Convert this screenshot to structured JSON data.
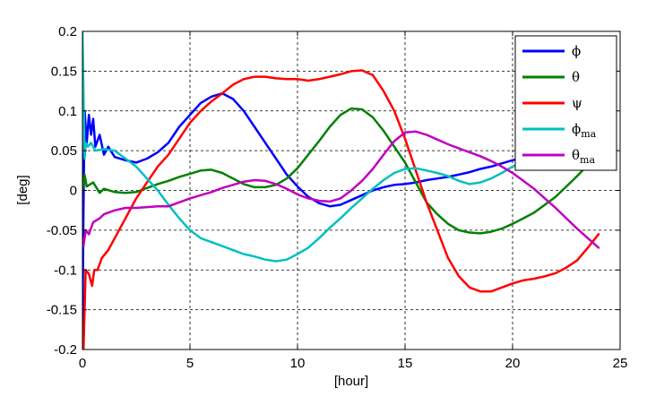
{
  "chart_data": {
    "type": "line",
    "title": "",
    "xlabel": "[hour]",
    "ylabel": "[deg]",
    "xlim": [
      0,
      25
    ],
    "ylim": [
      -0.2,
      0.2
    ],
    "xticks": [
      "0",
      "5",
      "10",
      "15",
      "20",
      "25"
    ],
    "yticks": [
      "-0.2",
      "-0.15",
      "-0.1",
      "-0.05",
      "0",
      "0.05",
      "0.1",
      "0.15",
      "0.2"
    ],
    "grid": true,
    "legend_position": "top-right",
    "series": [
      {
        "name": "ϕ",
        "color": "#0000ff",
        "points": [
          [
            0,
            -0.18
          ],
          [
            0.05,
            -0.02
          ],
          [
            0.1,
            0.1
          ],
          [
            0.2,
            0.06
          ],
          [
            0.3,
            0.095
          ],
          [
            0.4,
            0.07
          ],
          [
            0.5,
            0.09
          ],
          [
            0.6,
            0.055
          ],
          [
            0.8,
            0.07
          ],
          [
            1.0,
            0.045
          ],
          [
            1.2,
            0.055
          ],
          [
            1.5,
            0.042
          ],
          [
            2,
            0.038
          ],
          [
            2.5,
            0.035
          ],
          [
            3,
            0.04
          ],
          [
            3.5,
            0.048
          ],
          [
            4,
            0.06
          ],
          [
            4.5,
            0.08
          ],
          [
            5,
            0.095
          ],
          [
            5.5,
            0.11
          ],
          [
            6,
            0.118
          ],
          [
            6.5,
            0.122
          ],
          [
            7,
            0.115
          ],
          [
            7.5,
            0.1
          ],
          [
            8,
            0.08
          ],
          [
            8.5,
            0.06
          ],
          [
            9,
            0.04
          ],
          [
            9.5,
            0.02
          ],
          [
            10,
            0.005
          ],
          [
            10.5,
            -0.008
          ],
          [
            11,
            -0.016
          ],
          [
            11.5,
            -0.02
          ],
          [
            12,
            -0.018
          ],
          [
            12.5,
            -0.012
          ],
          [
            13,
            -0.006
          ],
          [
            13.5,
            0
          ],
          [
            14,
            0.004
          ],
          [
            14.5,
            0.007
          ],
          [
            15,
            0.008
          ],
          [
            15.5,
            0.01
          ],
          [
            16,
            0.013
          ],
          [
            16.5,
            0.015
          ],
          [
            17,
            0.017
          ],
          [
            17.5,
            0.02
          ],
          [
            18,
            0.023
          ],
          [
            18.5,
            0.027
          ],
          [
            19,
            0.03
          ],
          [
            19.5,
            0.034
          ],
          [
            20,
            0.038
          ],
          [
            20.3,
            0.04
          ]
        ]
      },
      {
        "name": "θ",
        "color": "#008000",
        "points": [
          [
            0,
            0
          ],
          [
            0.1,
            0.02
          ],
          [
            0.2,
            0.005
          ],
          [
            0.5,
            0.01
          ],
          [
            0.8,
            -0.003
          ],
          [
            1,
            0.002
          ],
          [
            1.5,
            -0.002
          ],
          [
            2,
            -0.003
          ],
          [
            2.5,
            -0.002
          ],
          [
            3,
            0.003
          ],
          [
            3.5,
            0.008
          ],
          [
            4,
            0.012
          ],
          [
            4.5,
            0.017
          ],
          [
            5,
            0.021
          ],
          [
            5.5,
            0.025
          ],
          [
            6,
            0.026
          ],
          [
            6.5,
            0.022
          ],
          [
            7,
            0.015
          ],
          [
            7.5,
            0.008
          ],
          [
            8,
            0.004
          ],
          [
            8.5,
            0.004
          ],
          [
            9,
            0.007
          ],
          [
            9.5,
            0.015
          ],
          [
            10,
            0.028
          ],
          [
            10.5,
            0.045
          ],
          [
            11,
            0.062
          ],
          [
            11.5,
            0.08
          ],
          [
            12,
            0.095
          ],
          [
            12.5,
            0.103
          ],
          [
            13,
            0.102
          ],
          [
            13.5,
            0.092
          ],
          [
            14,
            0.075
          ],
          [
            14.5,
            0.055
          ],
          [
            15,
            0.035
          ],
          [
            15.5,
            0.01
          ],
          [
            16,
            -0.015
          ],
          [
            16.5,
            -0.03
          ],
          [
            17,
            -0.042
          ],
          [
            17.5,
            -0.05
          ],
          [
            18,
            -0.053
          ],
          [
            18.5,
            -0.054
          ],
          [
            19,
            -0.052
          ],
          [
            19.5,
            -0.048
          ],
          [
            20,
            -0.042
          ],
          [
            20.5,
            -0.035
          ],
          [
            21,
            -0.028
          ],
          [
            21.5,
            -0.018
          ],
          [
            22,
            -0.008
          ],
          [
            22.5,
            0.005
          ],
          [
            23,
            0.018
          ],
          [
            23.5,
            0.032
          ],
          [
            23.8,
            0.04
          ]
        ]
      },
      {
        "name": "ψ",
        "color": "#ff0000",
        "points": [
          [
            0,
            -0.2
          ],
          [
            0.05,
            -0.2
          ],
          [
            0.15,
            -0.1
          ],
          [
            0.3,
            -0.105
          ],
          [
            0.45,
            -0.12
          ],
          [
            0.55,
            -0.1
          ],
          [
            0.7,
            -0.1
          ],
          [
            0.9,
            -0.085
          ],
          [
            1.2,
            -0.075
          ],
          [
            1.5,
            -0.06
          ],
          [
            2,
            -0.035
          ],
          [
            2.5,
            -0.01
          ],
          [
            3,
            0.01
          ],
          [
            3.5,
            0.03
          ],
          [
            4,
            0.045
          ],
          [
            4.5,
            0.065
          ],
          [
            5,
            0.085
          ],
          [
            5.5,
            0.1
          ],
          [
            6,
            0.112
          ],
          [
            6.5,
            0.122
          ],
          [
            7,
            0.133
          ],
          [
            7.5,
            0.14
          ],
          [
            8,
            0.143
          ],
          [
            8.5,
            0.143
          ],
          [
            9,
            0.141
          ],
          [
            9.5,
            0.14
          ],
          [
            10,
            0.14
          ],
          [
            10.5,
            0.138
          ],
          [
            11,
            0.14
          ],
          [
            11.5,
            0.143
          ],
          [
            12,
            0.146
          ],
          [
            12.5,
            0.15
          ],
          [
            13,
            0.151
          ],
          [
            13.5,
            0.145
          ],
          [
            14,
            0.125
          ],
          [
            14.5,
            0.1
          ],
          [
            15,
            0.065
          ],
          [
            15.5,
            0.025
          ],
          [
            16,
            -0.015
          ],
          [
            16.5,
            -0.05
          ],
          [
            17,
            -0.085
          ],
          [
            17.5,
            -0.108
          ],
          [
            18,
            -0.122
          ],
          [
            18.5,
            -0.127
          ],
          [
            19,
            -0.127
          ],
          [
            19.5,
            -0.122
          ],
          [
            20,
            -0.117
          ],
          [
            20.5,
            -0.113
          ],
          [
            21,
            -0.111
          ],
          [
            21.5,
            -0.108
          ],
          [
            22,
            -0.104
          ],
          [
            22.5,
            -0.097
          ],
          [
            23,
            -0.088
          ],
          [
            23.5,
            -0.072
          ],
          [
            24,
            -0.055
          ]
        ]
      },
      {
        "name": "ϕma",
        "color": "#00c0c0",
        "points": [
          [
            0,
            0.2
          ],
          [
            0.05,
            0.12
          ],
          [
            0.1,
            0.04
          ],
          [
            0.15,
            0.06
          ],
          [
            0.25,
            0.055
          ],
          [
            0.4,
            0.06
          ],
          [
            0.6,
            0.05
          ],
          [
            1,
            0.052
          ],
          [
            1.5,
            0.05
          ],
          [
            2,
            0.04
          ],
          [
            2.5,
            0.03
          ],
          [
            3,
            0.015
          ],
          [
            3.5,
            0
          ],
          [
            4,
            -0.018
          ],
          [
            4.5,
            -0.035
          ],
          [
            5,
            -0.05
          ],
          [
            5.5,
            -0.06
          ],
          [
            6,
            -0.065
          ],
          [
            6.5,
            -0.07
          ],
          [
            7,
            -0.075
          ],
          [
            7.5,
            -0.08
          ],
          [
            8,
            -0.083
          ],
          [
            8.5,
            -0.087
          ],
          [
            9,
            -0.089
          ],
          [
            9.5,
            -0.087
          ],
          [
            10,
            -0.08
          ],
          [
            10.5,
            -0.072
          ],
          [
            11,
            -0.06
          ],
          [
            11.5,
            -0.047
          ],
          [
            12,
            -0.035
          ],
          [
            12.5,
            -0.022
          ],
          [
            13,
            -0.01
          ],
          [
            13.5,
            0.002
          ],
          [
            14,
            0.013
          ],
          [
            14.5,
            0.022
          ],
          [
            15,
            0.027
          ],
          [
            15.5,
            0.028
          ],
          [
            16,
            0.025
          ],
          [
            16.5,
            0.022
          ],
          [
            17,
            0.018
          ],
          [
            17.5,
            0.012
          ],
          [
            18,
            0.008
          ],
          [
            18.5,
            0.01
          ],
          [
            19,
            0.015
          ],
          [
            19.5,
            0.022
          ],
          [
            20,
            0.03
          ],
          [
            20.5,
            0.036
          ]
        ]
      },
      {
        "name": "θma",
        "color": "#c000c0",
        "points": [
          [
            0,
            -0.06
          ],
          [
            0.05,
            -0.07
          ],
          [
            0.15,
            -0.05
          ],
          [
            0.3,
            -0.055
          ],
          [
            0.5,
            -0.04
          ],
          [
            0.8,
            -0.035
          ],
          [
            1,
            -0.03
          ],
          [
            1.5,
            -0.025
          ],
          [
            2,
            -0.022
          ],
          [
            2.5,
            -0.022
          ],
          [
            3,
            -0.021
          ],
          [
            3.5,
            -0.02
          ],
          [
            4,
            -0.02
          ],
          [
            4.5,
            -0.015
          ],
          [
            5,
            -0.01
          ],
          [
            5.5,
            -0.006
          ],
          [
            6,
            -0.002
          ],
          [
            6.5,
            0.003
          ],
          [
            7,
            0.007
          ],
          [
            7.5,
            0.011
          ],
          [
            8,
            0.013
          ],
          [
            8.5,
            0.012
          ],
          [
            9,
            0.008
          ],
          [
            9.5,
            0.002
          ],
          [
            10,
            -0.005
          ],
          [
            10.5,
            -0.01
          ],
          [
            11,
            -0.013
          ],
          [
            11.5,
            -0.014
          ],
          [
            12,
            -0.01
          ],
          [
            12.5,
            0
          ],
          [
            13,
            0.012
          ],
          [
            13.5,
            0.027
          ],
          [
            14,
            0.045
          ],
          [
            14.5,
            0.062
          ],
          [
            15,
            0.073
          ],
          [
            15.5,
            0.074
          ],
          [
            16,
            0.07
          ],
          [
            16.5,
            0.064
          ],
          [
            17,
            0.058
          ],
          [
            17.5,
            0.053
          ],
          [
            18,
            0.048
          ],
          [
            18.5,
            0.043
          ],
          [
            19,
            0.037
          ],
          [
            19.5,
            0.03
          ],
          [
            20,
            0.022
          ],
          [
            20.5,
            0.012
          ],
          [
            21,
            0.002
          ],
          [
            21.5,
            -0.01
          ],
          [
            22,
            -0.022
          ],
          [
            22.5,
            -0.035
          ],
          [
            23,
            -0.048
          ],
          [
            23.5,
            -0.06
          ],
          [
            24,
            -0.072
          ]
        ]
      }
    ]
  }
}
